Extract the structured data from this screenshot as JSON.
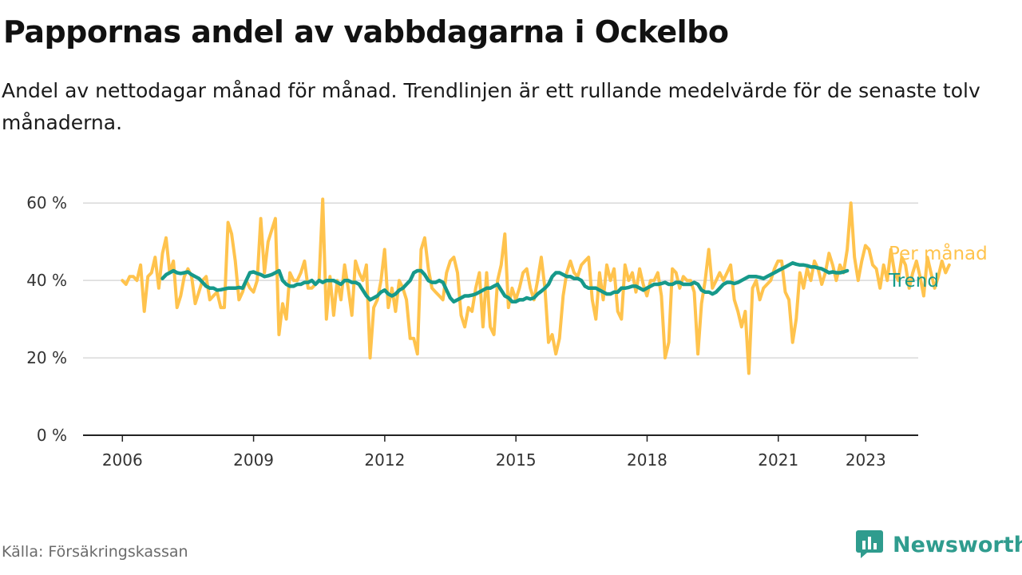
{
  "header": {
    "title": "Pappornas andel av vabbdagarna i Ockelbo",
    "subtitle": "Andel av nettodagar månad för månad. Trendlinjen är ett rullande medelvärde för de senaste tolv månaderna."
  },
  "footer": {
    "source": "Källa: Försäkringskassan",
    "brand": "Newsworthy"
  },
  "colors": {
    "monthly": "#ffc34d",
    "trend": "#16998a",
    "grid": "#d9d9d9",
    "axis": "#222222",
    "brand": "#2f9c8e"
  },
  "chart_data": {
    "type": "line",
    "y_ticks": [
      0,
      20,
      40,
      60
    ],
    "y_tick_labels": [
      "0 %",
      "20 %",
      "40 %",
      "60 %"
    ],
    "x_ticks": [
      2006,
      2009,
      2012,
      2015,
      2018,
      2021,
      2023
    ],
    "x_tick_labels": [
      "2006",
      "2009",
      "2012",
      "2015",
      "2018",
      "2021",
      "2023"
    ],
    "ylim": [
      0,
      65
    ],
    "xlim": [
      2005.1,
      2024.2
    ],
    "grid": true,
    "legend_placement": "right end of lines",
    "series": [
      {
        "name": "Per månad",
        "x_start": 2006.0,
        "x_step": 0.0833,
        "values": [
          40,
          39,
          41,
          41,
          40,
          44,
          32,
          41,
          42,
          46,
          38,
          47,
          51,
          42,
          45,
          33,
          36,
          41,
          43,
          41,
          34,
          37,
          40,
          41,
          35,
          36,
          37,
          33,
          33,
          55,
          52,
          45,
          35,
          37,
          40,
          38,
          37,
          40,
          56,
          42,
          50,
          53,
          56,
          26,
          34,
          30,
          42,
          40,
          40,
          42,
          45,
          38,
          38,
          39,
          40,
          61,
          30,
          41,
          31,
          40,
          35,
          44,
          38,
          31,
          45,
          42,
          40,
          44,
          20,
          33,
          35,
          40,
          48,
          33,
          38,
          32,
          40,
          38,
          35,
          25,
          25,
          21,
          48,
          51,
          43,
          38,
          37,
          36,
          35,
          42,
          45,
          46,
          42,
          31,
          28,
          33,
          32,
          38,
          42,
          28,
          42,
          28,
          26,
          40,
          44,
          52,
          33,
          38,
          35,
          38,
          42,
          43,
          38,
          35,
          40,
          46,
          38,
          24,
          26,
          21,
          25,
          36,
          42,
          45,
          42,
          41,
          44,
          45,
          46,
          35,
          30,
          42,
          35,
          44,
          40,
          43,
          32,
          30,
          44,
          40,
          42,
          37,
          43,
          39,
          36,
          40,
          40,
          42,
          36,
          20,
          24,
          43,
          42,
          38,
          41,
          40,
          40,
          37,
          21,
          34,
          40,
          48,
          38,
          40,
          42,
          40,
          42,
          44,
          35,
          32,
          28,
          32,
          16,
          38,
          40,
          35,
          38,
          39,
          40,
          43,
          45,
          45,
          37,
          35,
          24,
          30,
          42,
          38,
          43,
          40,
          45,
          43,
          39,
          42,
          47,
          44,
          40,
          44,
          42,
          48,
          60,
          46,
          40,
          45,
          49,
          48,
          44,
          43,
          38,
          44,
          40,
          48,
          42,
          40,
          46,
          44,
          38,
          42,
          45,
          41,
          36,
          46,
          42,
          38,
          41,
          45,
          42,
          44
        ],
        "label": "Per månad"
      },
      {
        "name": "Trend",
        "x_start": 2006.9167,
        "x_step": 0.0833,
        "values": [
          40.5,
          41.5,
          42,
          42.5,
          42,
          41.8,
          42,
          42.2,
          41.5,
          41,
          40.5,
          39.5,
          38.5,
          38,
          38,
          37.5,
          37.6,
          37.8,
          38,
          38,
          38,
          38.2,
          38,
          40,
          42,
          42.2,
          41.8,
          41.5,
          41,
          41.2,
          41.5,
          42,
          42.5,
          40,
          39,
          38.5,
          38.5,
          39,
          39,
          39.5,
          39.5,
          40,
          39,
          40,
          39.5,
          40,
          40,
          40,
          39.5,
          39,
          40,
          40,
          39.5,
          39.5,
          39,
          37.5,
          36,
          35,
          35.5,
          36,
          37,
          37.5,
          36.5,
          36,
          36.5,
          37.5,
          38,
          39,
          40,
          42,
          42.5,
          42.5,
          41.5,
          40,
          39.5,
          39.5,
          40,
          39.5,
          37.5,
          35.5,
          34.5,
          35,
          35.5,
          36,
          36,
          36.2,
          36.5,
          37,
          37.5,
          38,
          38,
          38.5,
          39,
          37.5,
          36,
          35.5,
          34.5,
          34.5,
          35,
          35,
          35.5,
          35.2,
          35.5,
          36.5,
          37.2,
          38,
          39,
          41,
          42,
          42,
          41.5,
          41,
          41,
          40.5,
          40.5,
          40,
          38.5,
          38,
          38,
          38,
          37.5,
          37,
          36.5,
          36.5,
          37,
          37,
          38,
          38,
          38.2,
          38.5,
          38.5,
          38,
          37.5,
          38,
          38.5,
          39,
          39,
          39.2,
          39.5,
          39,
          39,
          39.5,
          39.5,
          39,
          39,
          39,
          39.5,
          39,
          37.5,
          37,
          37,
          36.5,
          37,
          38,
          39,
          39.5,
          39.5,
          39.2,
          39.5,
          40,
          40.5,
          41,
          41,
          41,
          40.8,
          40.5,
          41,
          41.5,
          42,
          42.5,
          43,
          43.5,
          44,
          44.5,
          44.2,
          44,
          44,
          43.8,
          43.5,
          43.5,
          43.2,
          43,
          42.5,
          42,
          42.2,
          42,
          42,
          42.2,
          42.5
        ]
      }
    ]
  }
}
